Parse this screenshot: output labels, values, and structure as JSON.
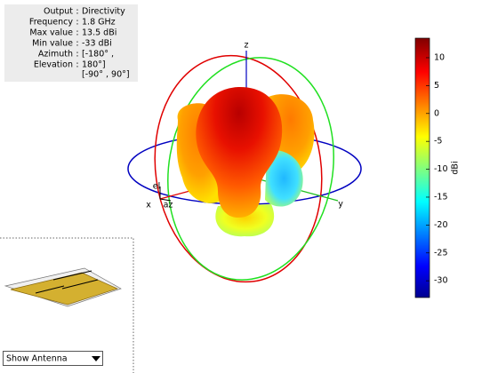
{
  "info": {
    "separator": ":",
    "rows": [
      {
        "label": "Output",
        "value": "Directivity"
      },
      {
        "label": "Frequency",
        "value": "1.8 GHz"
      },
      {
        "label": "Max value",
        "value": "13.5 dBi"
      },
      {
        "label": "Min value",
        "value": "-33 dBi"
      },
      {
        "label": "Azimuth",
        "value": "[-180° ,"
      },
      {
        "label": "Elevation",
        "value": "180°]"
      }
    ],
    "extra": "[-90° , 90°]"
  },
  "axes": {
    "x": "x",
    "y": "y",
    "z": "z",
    "az": "az",
    "el": "el"
  },
  "colorbar": {
    "label": "dBi",
    "lim": [
      -33,
      13.5
    ],
    "ticks": [
      10,
      5,
      0,
      -5,
      -10,
      -15,
      -20,
      -25,
      -30
    ]
  },
  "dropdown": {
    "selected": "Show Antenna"
  }
}
